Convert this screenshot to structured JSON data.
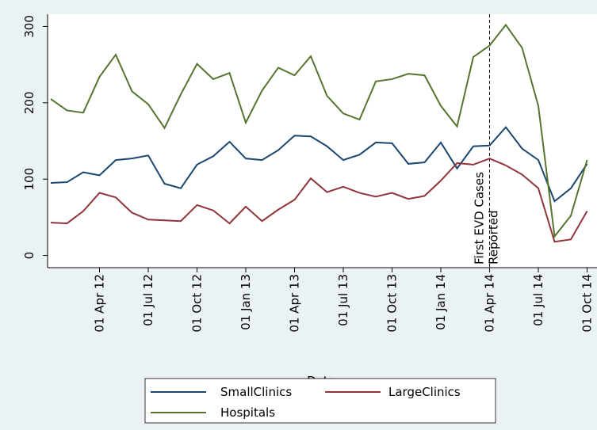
{
  "chart_data": {
    "type": "line",
    "x_label": "Date",
    "categories": [
      null,
      null,
      null,
      "01 Apr 12",
      null,
      null,
      "01 Jul 12",
      null,
      null,
      "01 Oct 12",
      null,
      null,
      "01 Jan 13",
      null,
      null,
      "01 Apr 13",
      null,
      null,
      "01 Jul 13",
      null,
      null,
      "01 Oct 13",
      null,
      null,
      "01 Jan 14",
      null,
      null,
      "01 Apr 14",
      null,
      null,
      "01 Jul 14",
      null,
      null,
      "01 Oct 14"
    ],
    "series": [
      {
        "name": "SmallClinics",
        "color": "#1a476f",
        "values": [
          95,
          96,
          109,
          105,
          125,
          127,
          131,
          94,
          88,
          119,
          130,
          149,
          127,
          125,
          138,
          157,
          156,
          143,
          125,
          132,
          148,
          147,
          120,
          122,
          148,
          114,
          143,
          144,
          168,
          140,
          125,
          71,
          88,
          120
        ]
      },
      {
        "name": "LargeClinics",
        "color": "#90353b",
        "values": [
          43,
          42,
          58,
          82,
          76,
          56,
          47,
          46,
          45,
          66,
          59,
          42,
          64,
          45,
          60,
          73,
          101,
          83,
          90,
          82,
          77,
          82,
          74,
          78,
          98,
          121,
          119,
          127,
          118,
          106,
          88,
          18,
          21,
          58
        ]
      },
      {
        "name": "Hospitals",
        "color": "#55752f",
        "values": [
          205,
          190,
          187,
          234,
          263,
          215,
          198,
          167,
          211,
          251,
          231,
          239,
          174,
          216,
          246,
          236,
          261,
          209,
          186,
          178,
          228,
          231,
          238,
          236,
          196,
          169,
          260,
          275,
          302,
          272,
          196,
          25,
          52,
          125
        ]
      }
    ],
    "ylim": [
      -16,
      316
    ],
    "yticks": [
      0,
      100,
      200,
      300
    ],
    "vline": 27,
    "annotation": [
      "First EVD Cases",
      "Reported"
    ]
  }
}
